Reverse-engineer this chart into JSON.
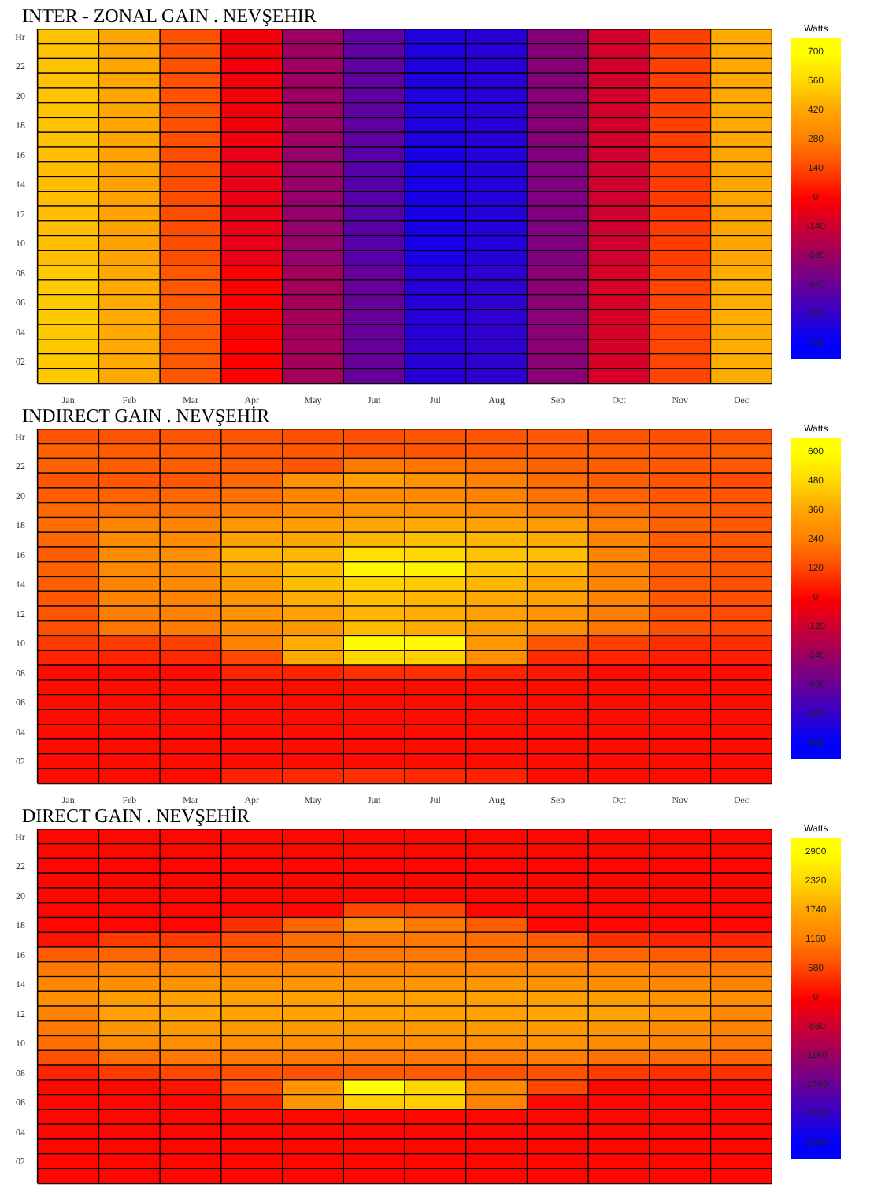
{
  "chart_data": [
    {
      "type": "heatmap",
      "title": "INTER - ZONAL GAIN . NEVŞEHIR",
      "clabel": "Watts",
      "categories": [
        "Jan",
        "Feb",
        "Mar",
        "Apr",
        "May",
        "Jun",
        "Jul",
        "Aug",
        "Sep",
        "Oct",
        "Nov",
        "Dec"
      ],
      "y_categories": [
        "Hr",
        null,
        "22",
        null,
        "20",
        null,
        "18",
        null,
        "16",
        null,
        "14",
        null,
        "12",
        null,
        "10",
        null,
        "08",
        null,
        "06",
        null,
        "04",
        null,
        "02",
        null
      ],
      "clim": [
        -770,
        770
      ],
      "cticks": [
        -700,
        -560,
        -420,
        -280,
        -140,
        0,
        140,
        280,
        420,
        560,
        700
      ],
      "cells": [
        [
          500,
          420,
          170,
          -30,
          -270,
          -440,
          -610,
          -590,
          -330,
          -120,
          130,
          430
        ],
        [
          500,
          420,
          170,
          -30,
          -270,
          -440,
          -610,
          -590,
          -330,
          -120,
          130,
          430
        ],
        [
          500,
          420,
          170,
          -30,
          -270,
          -440,
          -610,
          -590,
          -330,
          -120,
          130,
          430
        ],
        [
          500,
          420,
          170,
          -30,
          -270,
          -440,
          -610,
          -590,
          -330,
          -120,
          130,
          430
        ],
        [
          500,
          420,
          170,
          -30,
          -270,
          -440,
          -610,
          -590,
          -330,
          -120,
          130,
          430
        ],
        [
          500,
          420,
          170,
          -30,
          -270,
          -440,
          -610,
          -590,
          -330,
          -120,
          130,
          430
        ],
        [
          500,
          420,
          170,
          -30,
          -270,
          -440,
          -610,
          -590,
          -330,
          -120,
          130,
          430
        ],
        [
          500,
          420,
          170,
          -30,
          -270,
          -440,
          -610,
          -590,
          -330,
          -120,
          130,
          430
        ],
        [
          490,
          410,
          160,
          -60,
          -290,
          -460,
          -630,
          -600,
          -350,
          -130,
          120,
          420
        ],
        [
          490,
          410,
          160,
          -60,
          -290,
          -460,
          -630,
          -600,
          -350,
          -130,
          120,
          420
        ],
        [
          490,
          410,
          160,
          -60,
          -290,
          -460,
          -630,
          -600,
          -350,
          -130,
          120,
          420
        ],
        [
          490,
          410,
          160,
          -60,
          -290,
          -460,
          -630,
          -600,
          -350,
          -130,
          120,
          420
        ],
        [
          490,
          410,
          160,
          -60,
          -290,
          -460,
          -630,
          -600,
          -350,
          -130,
          120,
          420
        ],
        [
          490,
          410,
          160,
          -60,
          -290,
          -460,
          -630,
          -600,
          -350,
          -130,
          120,
          420
        ],
        [
          490,
          410,
          160,
          -60,
          -290,
          -460,
          -630,
          -600,
          -350,
          -130,
          120,
          420
        ],
        [
          490,
          410,
          160,
          -60,
          -290,
          -460,
          -630,
          -600,
          -350,
          -130,
          120,
          420
        ],
        [
          520,
          430,
          180,
          0,
          -250,
          -420,
          -590,
          -570,
          -320,
          -110,
          140,
          440
        ],
        [
          520,
          430,
          180,
          0,
          -250,
          -420,
          -590,
          -570,
          -320,
          -110,
          140,
          440
        ],
        [
          520,
          430,
          180,
          0,
          -250,
          -420,
          -590,
          -570,
          -320,
          -110,
          140,
          440
        ],
        [
          520,
          430,
          180,
          0,
          -250,
          -420,
          -590,
          -570,
          -320,
          -110,
          140,
          440
        ],
        [
          520,
          430,
          180,
          0,
          -250,
          -420,
          -590,
          -570,
          -320,
          -110,
          140,
          440
        ],
        [
          520,
          430,
          180,
          0,
          -250,
          -420,
          -590,
          -570,
          -320,
          -110,
          140,
          440
        ],
        [
          520,
          430,
          180,
          0,
          -250,
          -420,
          -590,
          -570,
          -320,
          -110,
          140,
          440
        ],
        [
          520,
          430,
          180,
          0,
          -250,
          -420,
          -590,
          -570,
          -320,
          -110,
          140,
          440
        ]
      ]
    },
    {
      "type": "heatmap",
      "title": "INDIRECT GAIN . NEVŞEHİR",
      "clabel": "Watts",
      "categories": [
        "Jan",
        "Feb",
        "Mar",
        "Apr",
        "May",
        "Jun",
        "Jul",
        "Aug",
        "Sep",
        "Oct",
        "Nov",
        "Dec"
      ],
      "y_categories": [
        "Hr",
        null,
        "22",
        null,
        "20",
        null,
        "18",
        null,
        "16",
        null,
        "14",
        null,
        "12",
        null,
        "10",
        null,
        "08",
        null,
        "06",
        null,
        "04",
        null,
        "02",
        null
      ],
      "clim": [
        -660,
        660
      ],
      "cticks": [
        -600,
        -480,
        -360,
        -240,
        -120,
        0,
        120,
        240,
        360,
        480,
        600
      ],
      "cells": [
        [
          150,
          150,
          150,
          150,
          140,
          140,
          150,
          150,
          160,
          150,
          140,
          150
        ],
        [
          180,
          170,
          170,
          160,
          160,
          150,
          150,
          160,
          170,
          170,
          160,
          170
        ],
        [
          180,
          170,
          170,
          170,
          150,
          230,
          220,
          200,
          180,
          170,
          160,
          160
        ],
        [
          150,
          160,
          160,
          190,
          300,
          340,
          300,
          250,
          200,
          170,
          150,
          130
        ],
        [
          170,
          180,
          190,
          210,
          260,
          280,
          270,
          250,
          210,
          180,
          160,
          150
        ],
        [
          190,
          200,
          210,
          240,
          280,
          300,
          290,
          270,
          230,
          200,
          170,
          160
        ],
        [
          200,
          260,
          260,
          320,
          330,
          360,
          370,
          350,
          330,
          240,
          180,
          160
        ],
        [
          190,
          280,
          280,
          350,
          360,
          400,
          420,
          400,
          380,
          250,
          170,
          160
        ],
        [
          170,
          280,
          290,
          390,
          400,
          500,
          480,
          430,
          420,
          260,
          170,
          150
        ],
        [
          180,
          270,
          280,
          360,
          420,
          570,
          560,
          440,
          400,
          260,
          170,
          150
        ],
        [
          170,
          260,
          270,
          330,
          420,
          470,
          450,
          400,
          360,
          260,
          160,
          140
        ],
        [
          160,
          250,
          260,
          310,
          380,
          420,
          400,
          370,
          340,
          250,
          160,
          140
        ],
        [
          150,
          240,
          250,
          300,
          340,
          400,
          380,
          340,
          310,
          240,
          150,
          130
        ],
        [
          140,
          220,
          230,
          280,
          320,
          410,
          370,
          330,
          290,
          220,
          140,
          120
        ],
        [
          100,
          100,
          110,
          260,
          380,
          590,
          580,
          320,
          150,
          110,
          80,
          80
        ],
        [
          60,
          60,
          70,
          120,
          370,
          480,
          460,
          290,
          70,
          60,
          50,
          50
        ],
        [
          20,
          20,
          20,
          60,
          60,
          80,
          80,
          60,
          40,
          20,
          20,
          20
        ],
        [
          20,
          20,
          20,
          20,
          20,
          20,
          20,
          20,
          20,
          20,
          20,
          20
        ],
        [
          20,
          20,
          20,
          20,
          20,
          20,
          20,
          20,
          20,
          20,
          20,
          20
        ],
        [
          20,
          20,
          20,
          20,
          20,
          20,
          20,
          20,
          20,
          20,
          20,
          20
        ],
        [
          20,
          20,
          20,
          20,
          20,
          20,
          20,
          20,
          20,
          20,
          20,
          20
        ],
        [
          20,
          20,
          20,
          20,
          20,
          20,
          20,
          20,
          20,
          20,
          20,
          20
        ],
        [
          20,
          20,
          20,
          20,
          20,
          20,
          20,
          20,
          20,
          20,
          20,
          20
        ],
        [
          20,
          20,
          20,
          60,
          70,
          80,
          70,
          60,
          20,
          20,
          20,
          20
        ]
      ]
    },
    {
      "type": "heatmap",
      "title": "DIRECT GAIN . NEVŞEHİR",
      "clabel": "Watts",
      "categories": [
        null,
        null,
        null,
        null,
        null,
        null,
        null,
        null,
        null,
        null,
        null,
        null
      ],
      "y_categories": [
        "Hr",
        null,
        "22",
        null,
        "20",
        null,
        "18",
        null,
        "16",
        null,
        "14",
        null,
        "12",
        null,
        "10",
        null,
        "08",
        null,
        "06",
        null,
        "04",
        null,
        "02",
        null
      ],
      "clim": [
        -3190,
        3190
      ],
      "cticks": [
        -2900,
        -2320,
        -1740,
        -1160,
        -580,
        0,
        580,
        1160,
        1740,
        2320,
        2900
      ],
      "cells": [
        [
          50,
          50,
          50,
          50,
          50,
          50,
          50,
          50,
          50,
          50,
          50,
          50
        ],
        [
          50,
          50,
          50,
          50,
          50,
          50,
          50,
          50,
          50,
          50,
          50,
          50
        ],
        [
          50,
          50,
          50,
          50,
          50,
          50,
          50,
          50,
          50,
          50,
          50,
          50
        ],
        [
          50,
          50,
          50,
          50,
          50,
          50,
          50,
          50,
          50,
          50,
          50,
          50
        ],
        [
          50,
          50,
          50,
          50,
          50,
          50,
          50,
          50,
          50,
          50,
          50,
          50
        ],
        [
          50,
          50,
          50,
          50,
          50,
          600,
          600,
          50,
          50,
          50,
          50,
          50
        ],
        [
          50,
          50,
          50,
          400,
          900,
          1500,
          1100,
          800,
          50,
          50,
          50,
          50
        ],
        [
          150,
          500,
          500,
          700,
          1000,
          1100,
          1100,
          1000,
          800,
          400,
          300,
          300
        ],
        [
          800,
          900,
          900,
          900,
          1000,
          1100,
          1100,
          1000,
          1000,
          900,
          800,
          800
        ],
        [
          1100,
          1200,
          1200,
          1200,
          1250,
          1250,
          1250,
          1250,
          1250,
          1200,
          1100,
          1100
        ],
        [
          1300,
          1400,
          1450,
          1450,
          1500,
          1500,
          1500,
          1500,
          1450,
          1400,
          1300,
          1200
        ],
        [
          1400,
          1600,
          1650,
          1650,
          1650,
          1650,
          1650,
          1650,
          1650,
          1600,
          1450,
          1400
        ],
        [
          1200,
          1650,
          1750,
          1700,
          1700,
          1700,
          1700,
          1700,
          1750,
          1700,
          1500,
          1300
        ],
        [
          1100,
          1500,
          1550,
          1550,
          1550,
          1550,
          1550,
          1550,
          1550,
          1500,
          1350,
          1200
        ],
        [
          1000,
          1350,
          1400,
          1400,
          1400,
          1400,
          1400,
          1400,
          1450,
          1350,
          1250,
          1100
        ],
        [
          700,
          1000,
          1100,
          1100,
          1100,
          1100,
          1100,
          1100,
          1150,
          1050,
          950,
          900
        ],
        [
          300,
          500,
          600,
          700,
          700,
          800,
          800,
          700,
          700,
          500,
          400,
          400
        ],
        [
          50,
          50,
          150,
          700,
          1500,
          2900,
          2300,
          1300,
          600,
          50,
          50,
          50
        ],
        [
          50,
          50,
          50,
          300,
          1500,
          2200,
          2200,
          1200,
          50,
          50,
          50,
          50
        ],
        [
          50,
          50,
          50,
          50,
          50,
          50,
          50,
          50,
          50,
          50,
          50,
          50
        ],
        [
          50,
          50,
          50,
          50,
          50,
          50,
          50,
          50,
          50,
          50,
          50,
          50
        ],
        [
          50,
          50,
          50,
          50,
          50,
          50,
          50,
          50,
          50,
          50,
          50,
          50
        ],
        [
          50,
          50,
          50,
          50,
          50,
          50,
          50,
          50,
          50,
          50,
          50,
          50
        ],
        [
          50,
          50,
          50,
          50,
          50,
          50,
          50,
          50,
          50,
          50,
          50,
          50
        ]
      ]
    }
  ]
}
